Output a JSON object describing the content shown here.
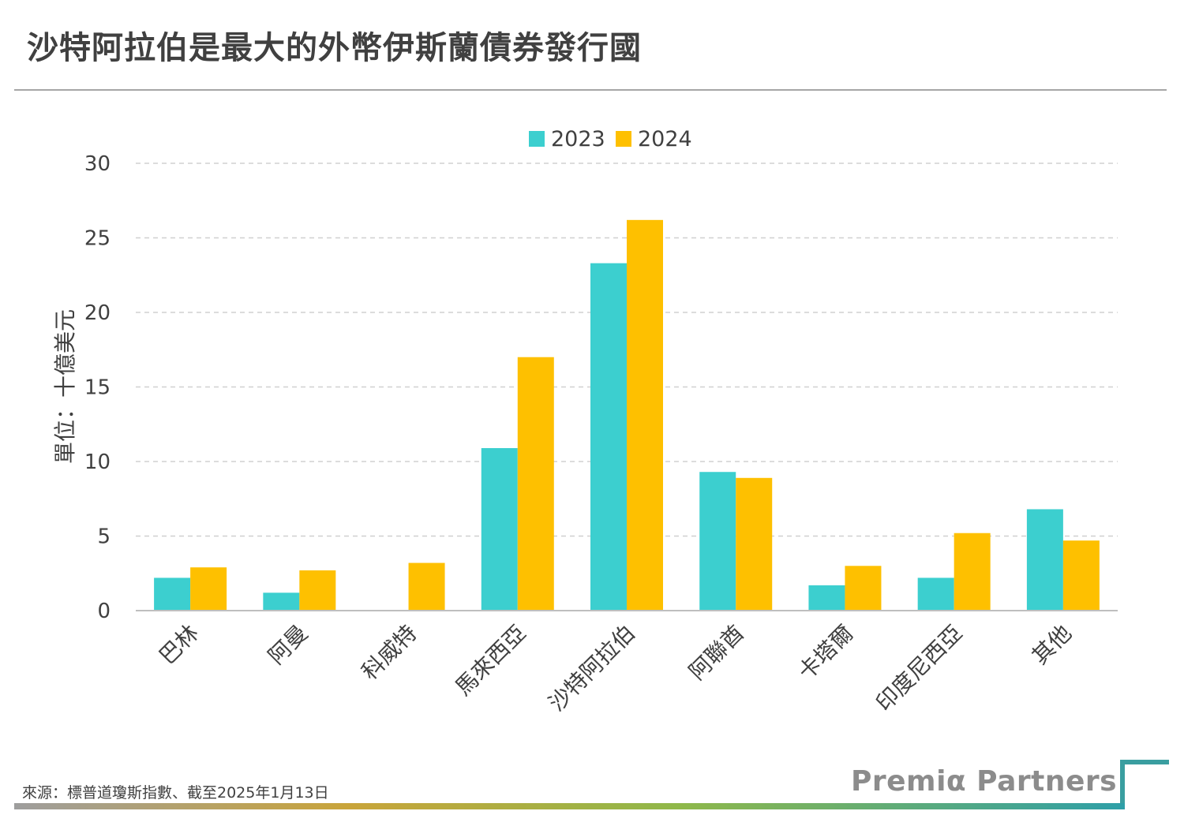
{
  "header": {
    "title": "沙特阿拉伯是最大的外幣伊斯蘭債券發行國"
  },
  "footer": {
    "source": "來源：標普道瓊斯指數、截至2025年1月13日",
    "brand": "Premiα Partners"
  },
  "colors": {
    "series_2023": "#3ccfcf",
    "series_2024": "#fec000",
    "grid": "#d0d0d0",
    "axis": "#bfbfbf",
    "text": "#404040",
    "brand_accent": "#3a9ea0"
  },
  "chart_data": {
    "type": "bar",
    "title": "",
    "ylabel": "單位：十億美元",
    "xlabel": "",
    "ylim": [
      0,
      30
    ],
    "yticks": [
      0,
      5,
      10,
      15,
      20,
      25,
      30
    ],
    "grid": true,
    "legend_position": "top-center",
    "categories": [
      "巴林",
      "阿曼",
      "科威特",
      "馬來西亞",
      "沙特阿拉伯",
      "阿聯酋",
      "卡塔爾",
      "印度尼西亞",
      "其他"
    ],
    "series": [
      {
        "name": "2023",
        "values": [
          2.2,
          1.2,
          0,
          10.9,
          23.3,
          9.3,
          1.7,
          2.2,
          6.8
        ]
      },
      {
        "name": "2024",
        "values": [
          2.9,
          2.7,
          3.2,
          17.0,
          26.2,
          8.9,
          3.0,
          5.2,
          4.7
        ]
      }
    ]
  }
}
